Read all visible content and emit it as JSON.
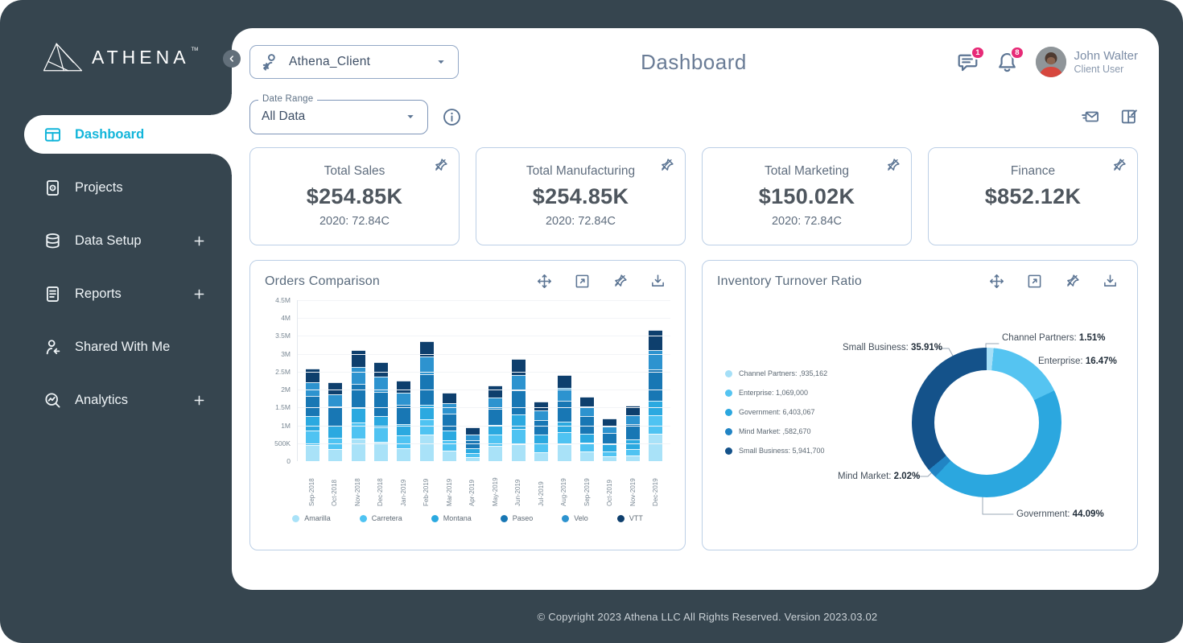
{
  "app": {
    "brand": "ATHENA",
    "brand_tm": "TM",
    "footer": "© Copyright 2023 Athena LLC All Rights Reserved. Version 2023.03.02"
  },
  "sidebar": {
    "items": [
      {
        "label": "Dashboard",
        "icon": "dashboard-icon",
        "active": true,
        "expandable": false
      },
      {
        "label": "Projects",
        "icon": "projects-icon",
        "active": false,
        "expandable": false
      },
      {
        "label": "Data Setup",
        "icon": "database-icon",
        "active": false,
        "expandable": true
      },
      {
        "label": "Reports",
        "icon": "reports-icon",
        "active": false,
        "expandable": true
      },
      {
        "label": "Shared With Me",
        "icon": "shared-icon",
        "active": false,
        "expandable": false
      },
      {
        "label": "Analytics",
        "icon": "analytics-icon",
        "active": false,
        "expandable": true
      }
    ]
  },
  "header": {
    "client_selector": {
      "value": "Athena_Client",
      "icon": "client-switch-icon"
    },
    "title": "Dashboard",
    "messages_badge": "1",
    "notifications_badge": "8",
    "user": {
      "name": "John Walter",
      "role": "Client User"
    }
  },
  "toolbar": {
    "date_range_label": "Date Range",
    "date_range_value": "All Data",
    "icons": [
      "send-mail-icon",
      "layout-edit-icon"
    ]
  },
  "kpi_cards": [
    {
      "title": "Total Sales",
      "value": "$254.85K",
      "subtitle": "2020: 72.84C"
    },
    {
      "title": "Total Manufacturing",
      "value": "$254.85K",
      "subtitle": "2020: 72.84C"
    },
    {
      "title": "Total Marketing",
      "value": "$150.02K",
      "subtitle": "2020: 72.84C"
    },
    {
      "title": "Finance",
      "value": "$852.12K",
      "subtitle": ""
    }
  ],
  "card_actions": [
    "move-icon",
    "expand-icon",
    "pin-off-icon",
    "download-icon"
  ],
  "colors": {
    "sidebar_dark": "#36454F",
    "active_cyan": "#12B5DA",
    "slate_icon": "#5B7493",
    "card_border": "#BCCFE6",
    "badge_pink": "#E72A77"
  },
  "chart_data": [
    {
      "type": "bar",
      "stacked": true,
      "title": "Orders Comparison",
      "unit": "M",
      "ylim": [
        0,
        4.5
      ],
      "y_ticks": [
        "4.5M",
        "4M",
        "3.5M",
        "3M",
        "2.5M",
        "2M",
        "1.5M",
        "1M",
        "500K",
        "0"
      ],
      "grid": true,
      "legend_position": "bottom",
      "categories": [
        "Sep-2018",
        "Oct-2018",
        "Nov-2018",
        "Dec-2018",
        "Jan-2019",
        "Feb-2019",
        "Mar-2019",
        "Apr-2019",
        "May-2019",
        "Jun-2019",
        "Jul-2019",
        "Aug-2019",
        "Sep-2019",
        "Oct-2019",
        "Nov-2019",
        "Dec-2019"
      ],
      "series": [
        {
          "name": "Amarilla",
          "color": "#A9E2F8",
          "values": [
            0.44,
            0.33,
            0.62,
            0.55,
            0.36,
            0.74,
            0.3,
            0.11,
            0.42,
            0.48,
            0.25,
            0.48,
            0.27,
            0.14,
            0.16,
            0.77
          ]
        },
        {
          "name": "Carretera",
          "color": "#4FC3F2",
          "values": [
            0.42,
            0.33,
            0.47,
            0.39,
            0.36,
            0.44,
            0.29,
            0.11,
            0.32,
            0.43,
            0.25,
            0.34,
            0.25,
            0.14,
            0.19,
            0.51
          ]
        },
        {
          "name": "Montana",
          "color": "#2BA9E0",
          "values": [
            0.39,
            0.33,
            0.4,
            0.33,
            0.32,
            0.4,
            0.27,
            0.15,
            0.27,
            0.4,
            0.25,
            0.29,
            0.25,
            0.19,
            0.25,
            0.4
          ]
        },
        {
          "name": "Paseo",
          "color": "#1877B4",
          "values": [
            0.57,
            0.55,
            0.68,
            0.66,
            0.54,
            0.84,
            0.48,
            0.21,
            0.46,
            0.68,
            0.41,
            0.58,
            0.49,
            0.31,
            0.43,
            0.88
          ]
        },
        {
          "name": "Velo",
          "color": "#2D93CF",
          "values": [
            0.39,
            0.33,
            0.47,
            0.44,
            0.34,
            0.5,
            0.29,
            0.17,
            0.32,
            0.43,
            0.25,
            0.36,
            0.27,
            0.19,
            0.25,
            0.55
          ]
        },
        {
          "name": "VTT",
          "color": "#0E3F6D",
          "values": [
            0.39,
            0.33,
            0.47,
            0.39,
            0.34,
            0.44,
            0.29,
            0.19,
            0.32,
            0.43,
            0.25,
            0.36,
            0.27,
            0.22,
            0.28,
            0.55
          ]
        }
      ]
    },
    {
      "type": "pie",
      "donut": true,
      "title": "Inventory Turnover Ratio",
      "legend_position": "left",
      "slices": [
        {
          "label": "Channel Partners",
          "percent": 1.51,
          "amount": ",935,162",
          "color": "#A5DFF7"
        },
        {
          "label": "Enterprise",
          "percent": 16.47,
          "amount": "1,069,000",
          "color": "#55C4F1"
        },
        {
          "label": "Government",
          "percent": 44.09,
          "amount": "6,403,067",
          "color": "#2BA7DF"
        },
        {
          "label": "Mind Market",
          "percent": 2.02,
          "amount": ",582,670",
          "color": "#2184C4"
        },
        {
          "label": "Small Business",
          "percent": 35.91,
          "amount": "5,941,700",
          "color": "#14528A"
        }
      ]
    }
  ]
}
